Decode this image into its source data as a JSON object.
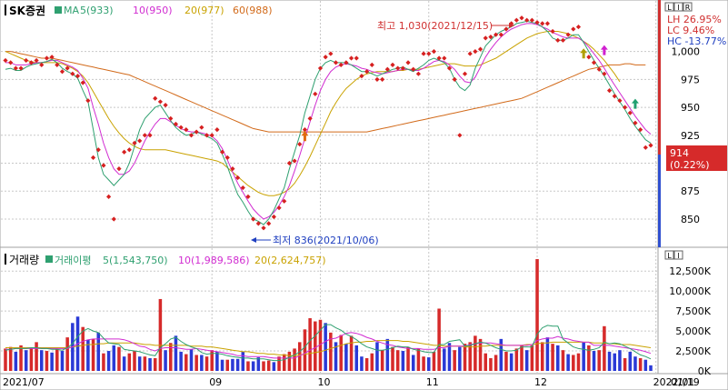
{
  "header": {
    "name": "SK증권",
    "ma_label": "MA",
    "ma5": "5(933)",
    "ma10": "10(950)",
    "ma20": "20(977)",
    "ma60": "60(988)",
    "vol_title": "거래량",
    "vol_ma_label": "거래이평",
    "vol_ma5": "5(1,543,750)",
    "vol_ma10": "10(1,989,586)",
    "vol_ma20": "20(2,624,757)"
  },
  "stats": {
    "lh": "LH  26.95%",
    "lc": "LC   9.46%",
    "hc": "HC -13.77%"
  },
  "buttons": {
    "price": [
      "L",
      "I",
      "R"
    ],
    "volume": [
      "L",
      "I"
    ]
  },
  "annotations": {
    "high": "최고 1,030(2021/12/15)",
    "low": "최저 836(2021/10/06)"
  },
  "current": {
    "price": "914",
    "change": "(0.22%)"
  },
  "chart_data": [
    {
      "type": "scatter",
      "name": "price",
      "ylim": [
        828,
        1042
      ],
      "yticks": [
        850,
        875,
        900,
        925,
        950,
        975,
        1000
      ],
      "ytick_labels": [
        "850",
        "875",
        "900",
        "925",
        "950",
        "975",
        "1,000"
      ],
      "x_labels": [
        {
          "i": 0,
          "label": "2021/07"
        },
        {
          "i": 40,
          "label": "09"
        },
        {
          "i": 61,
          "label": "10"
        },
        {
          "i": 82,
          "label": "11"
        },
        {
          "i": 103,
          "label": "12"
        },
        {
          "i": 126,
          "label": "2022/01"
        }
      ],
      "last_date": "01/19",
      "close": [
        992,
        990,
        985,
        985,
        992,
        990,
        992,
        988,
        994,
        995,
        988,
        982,
        985,
        980,
        978,
        972,
        956,
        905,
        912,
        898,
        870,
        850,
        895,
        910,
        912,
        918,
        920,
        925,
        925,
        958,
        955,
        952,
        940,
        935,
        932,
        930,
        925,
        928,
        932,
        925,
        925,
        930,
        910,
        905,
        895,
        887,
        878,
        870,
        850,
        846,
        842,
        846,
        852,
        860,
        866,
        900,
        902,
        917,
        930,
        940,
        962,
        985,
        995,
        998,
        990,
        988,
        990,
        994,
        994,
        978,
        982,
        988,
        975,
        975,
        984,
        988,
        985,
        985,
        990,
        984,
        980,
        998,
        998,
        1000,
        994,
        994,
        985,
        975,
        925,
        980,
        998,
        1000,
        1002,
        1012,
        1013,
        1015,
        1015,
        1020,
        1025,
        1028,
        1030,
        1028,
        1028,
        1026,
        1025,
        1025,
        1018,
        1010,
        1010,
        1015,
        1020,
        1022,
        1000,
        995,
        990,
        984,
        980,
        965,
        960,
        956,
        950,
        945,
        936,
        930,
        914,
        916
      ],
      "ma5": [
        984,
        985,
        983,
        983,
        986,
        988,
        989,
        990,
        991,
        993,
        990,
        985,
        982,
        980,
        976,
        965,
        955,
        930,
        905,
        890,
        885,
        880,
        885,
        890,
        900,
        915,
        930,
        940,
        945,
        950,
        952,
        945,
        938,
        932,
        928,
        925,
        926,
        928,
        926,
        924,
        922,
        918,
        908,
        897,
        884,
        872,
        865,
        857,
        850,
        848,
        845,
        850,
        858,
        868,
        878,
        895,
        910,
        925,
        945,
        960,
        975,
        985,
        990,
        992,
        990,
        990,
        990,
        988,
        985,
        982,
        982,
        980,
        978,
        980,
        982,
        984,
        985,
        986,
        984,
        982,
        985,
        988,
        992,
        994,
        992,
        990,
        985,
        975,
        968,
        965,
        970,
        985,
        995,
        1005,
        1010,
        1015,
        1018,
        1020,
        1022,
        1025,
        1026,
        1027,
        1026,
        1025,
        1022,
        1018,
        1012,
        1010,
        1010,
        1012,
        1015,
        1015,
        1008,
        1000,
        992,
        985,
        978,
        970,
        962,
        955,
        948,
        940,
        933,
        927,
        921,
        918
      ],
      "ma10": [
        990,
        990,
        988,
        988,
        988,
        989,
        990,
        990,
        991,
        992,
        992,
        990,
        988,
        986,
        983,
        976,
        967,
        950,
        935,
        918,
        905,
        895,
        890,
        890,
        893,
        900,
        910,
        920,
        928,
        935,
        940,
        940,
        937,
        934,
        931,
        929,
        928,
        928,
        927,
        926,
        924,
        920,
        913,
        903,
        892,
        882,
        874,
        866,
        859,
        854,
        850,
        852,
        856,
        862,
        870,
        880,
        893,
        907,
        922,
        937,
        952,
        965,
        975,
        982,
        986,
        988,
        989,
        988,
        987,
        985,
        984,
        982,
        981,
        980,
        981,
        982,
        983,
        984,
        984,
        983,
        983,
        985,
        988,
        991,
        992,
        991,
        988,
        984,
        978,
        973,
        972,
        977,
        986,
        995,
        1002,
        1008,
        1013,
        1017,
        1020,
        1022,
        1024,
        1025,
        1025,
        1024,
        1022,
        1020,
        1017,
        1015,
        1013,
        1012,
        1012,
        1012,
        1009,
        1004,
        998,
        992,
        985,
        977,
        970,
        963,
        956,
        949,
        942,
        936,
        930,
        926
      ],
      "ma20": [
        1000,
        998,
        996,
        994,
        992,
        991,
        990,
        990,
        990,
        990,
        990,
        989,
        987,
        985,
        982,
        978,
        972,
        964,
        956,
        948,
        940,
        933,
        927,
        922,
        918,
        915,
        913,
        912,
        912,
        912,
        912,
        912,
        911,
        910,
        909,
        908,
        907,
        906,
        905,
        904,
        903,
        902,
        900,
        896,
        892,
        888,
        884,
        880,
        877,
        874,
        872,
        871,
        871,
        872,
        874,
        877,
        882,
        889,
        897,
        906,
        916,
        926,
        936,
        946,
        954,
        961,
        967,
        971,
        975,
        978,
        980,
        981,
        982,
        982,
        982,
        982,
        983,
        983,
        984,
        984,
        984,
        985,
        986,
        987,
        988,
        989,
        989,
        989,
        988,
        987,
        987,
        987,
        988,
        990,
        992,
        994,
        997,
        1000,
        1003,
        1006,
        1009,
        1012,
        1014,
        1016,
        1017,
        1018,
        1018,
        1018,
        1017,
        1016,
        1014,
        1012,
        1009,
        1006,
        1002,
        997,
        992,
        986,
        980,
        973
      ],
      "ma60": [
        1000,
        1000,
        999,
        998,
        997,
        996,
        995,
        994,
        994,
        994,
        993,
        992,
        991,
        990,
        989,
        988,
        987,
        986,
        985,
        984,
        983,
        982,
        981,
        980,
        979,
        977,
        975,
        973,
        971,
        969,
        967,
        965,
        963,
        961,
        959,
        957,
        955,
        953,
        951,
        949,
        947,
        945,
        943,
        941,
        939,
        937,
        935,
        933,
        931,
        930,
        929,
        928,
        928,
        928,
        928,
        928,
        928,
        928,
        928,
        928,
        928,
        928,
        928,
        928,
        928,
        928,
        928,
        928,
        928,
        928,
        928,
        929,
        930,
        931,
        932,
        933,
        934,
        935,
        936,
        937,
        938,
        939,
        940,
        941,
        942,
        943,
        944,
        945,
        946,
        947,
        948,
        949,
        950,
        951,
        952,
        953,
        954,
        955,
        956,
        957,
        958,
        960,
        962,
        964,
        966,
        968,
        970,
        972,
        974,
        976,
        978,
        980,
        982,
        984,
        985,
        986,
        987,
        988,
        988,
        988,
        989,
        989,
        988,
        988,
        988
      ]
    },
    {
      "type": "bar",
      "name": "volume",
      "ylim": [
        0,
        14800
      ],
      "yticks": [
        0,
        2500,
        5000,
        7500,
        10000,
        12500
      ],
      "ytick_labels": [
        "0K",
        "2,500K",
        "5,000K",
        "7,500K",
        "10,000K",
        "12,500K"
      ],
      "unit": "K",
      "values": [
        2800,
        3000,
        2400,
        3200,
        2600,
        2900,
        3600,
        2600,
        2500,
        2300,
        2700,
        2500,
        4200,
        6000,
        6800,
        5500,
        3900,
        4000,
        4800,
        2200,
        2500,
        3200,
        3000,
        1800,
        2200,
        2500,
        1800,
        1800,
        1600,
        1600,
        9000,
        2600,
        3500,
        4400,
        2400,
        2100,
        2700,
        2000,
        2000,
        1800,
        2600,
        2400,
        1400,
        1400,
        1500,
        1500,
        2400,
        1200,
        1200,
        1700,
        1200,
        1300,
        1100,
        1800,
        2100,
        2400,
        2800,
        3600,
        5200,
        6600,
        6200,
        6400,
        6000,
        4800,
        3600,
        4500,
        3400,
        4400,
        3200,
        1800,
        1600,
        2200,
        3600,
        2600,
        4000,
        3000,
        2600,
        2500,
        3000,
        2000,
        2800,
        1800,
        1700,
        2400,
        7800,
        2800,
        3500,
        2600,
        3000,
        3400,
        3600,
        4400,
        4000,
        2200,
        1600,
        2000,
        4000,
        2400,
        2200,
        2800,
        3200,
        2600,
        3200,
        14000,
        3600,
        4200,
        3400,
        3200,
        2600,
        2100,
        2000,
        2200,
        3600,
        3200,
        2500,
        2600,
        5600,
        2400,
        2200,
        2600,
        1600,
        2400,
        1800,
        1600,
        1400,
        700
      ],
      "up": [
        1,
        1,
        0,
        1,
        0,
        1,
        1,
        0,
        1,
        0,
        1,
        0,
        1,
        0,
        0,
        1,
        0,
        1,
        0,
        1,
        0,
        0,
        1,
        0,
        1,
        1,
        0,
        1,
        0,
        1,
        1,
        0,
        1,
        0,
        0,
        1,
        0,
        1,
        0,
        1,
        1,
        0,
        0,
        1,
        0,
        0,
        0,
        1,
        0,
        0,
        1,
        1,
        0,
        1,
        1,
        1,
        1,
        1,
        1,
        1,
        1,
        1,
        0,
        1,
        0,
        1,
        0,
        1,
        0,
        0,
        1,
        1,
        0,
        1,
        0,
        1,
        1,
        0,
        1,
        0,
        1,
        1,
        0,
        1,
        1,
        0,
        0,
        1,
        0,
        1,
        1,
        1,
        1,
        1,
        1,
        1,
        0,
        1,
        0,
        1,
        1,
        0,
        1,
        1,
        1,
        0,
        1,
        0,
        1,
        0,
        1,
        1,
        0,
        1,
        0,
        1,
        1,
        0,
        0,
        0,
        1,
        0,
        0,
        1,
        0,
        0
      ],
      "ma5": [
        2600,
        2700,
        2800,
        2800,
        2800,
        2900,
        2900,
        2800,
        2800,
        2700,
        2700,
        2600,
        2900,
        3400,
        4300,
        5000,
        5300,
        5000,
        4800,
        4100,
        3500,
        3400,
        3300,
        2700,
        2600,
        2500,
        2400,
        2200,
        2000,
        1900,
        2900,
        3400,
        4000,
        4200,
        3700,
        3300,
        3000,
        2800,
        2300,
        2100,
        2200,
        2200,
        2100,
        1900,
        1800,
        1700,
        1600,
        1600,
        1500,
        1500,
        1500,
        1400,
        1300,
        1300,
        1400,
        1700,
        2000,
        2400,
        3000,
        3800,
        4400,
        5100,
        5800,
        5800,
        5400,
        5100,
        4600,
        4300,
        3900,
        3400,
        3000,
        2800,
        2600,
        2600,
        2700,
        2900,
        3100,
        3000,
        3000,
        2700,
        2600,
        2400,
        2300,
        2300,
        3300,
        3300,
        3700,
        3800,
        3900,
        3100,
        3200,
        3400,
        3600,
        3500,
        3200,
        2900,
        2700,
        2500,
        2500,
        2600,
        3000,
        3000,
        3000,
        4600,
        5400,
        5700,
        5600,
        5600,
        4000,
        3500,
        3000,
        2800,
        2700,
        2600,
        2700,
        2900,
        3600,
        3400,
        3500,
        3400,
        3100,
        2800,
        2400,
        2000,
        1800,
        1500
      ],
      "ma10": [
        2700,
        2700,
        2800,
        2800,
        2800,
        2800,
        2800,
        2800,
        2800,
        2800,
        2800,
        2800,
        2800,
        3000,
        3400,
        3700,
        3900,
        4000,
        4000,
        4000,
        4000,
        4000,
        4000,
        3900,
        3700,
        3400,
        3100,
        3000,
        2700,
        2500,
        2800,
        2900,
        2900,
        2900,
        2800,
        2700,
        2700,
        2800,
        2700,
        2600,
        2500,
        2400,
        2300,
        2200,
        2100,
        1900,
        1900,
        1800,
        1800,
        1800,
        1800,
        1700,
        1600,
        1600,
        1600,
        1600,
        1600,
        1900,
        2200,
        2600,
        2900,
        3300,
        3700,
        4000,
        4100,
        4400,
        4700,
        4800,
        4700,
        4500,
        4200,
        4000,
        3700,
        3500,
        3300,
        3200,
        3000,
        2900,
        2800,
        2800,
        2800,
        2700,
        2700,
        2700,
        2900,
        2900,
        3100,
        3100,
        3100,
        3100,
        3300,
        3400,
        3500,
        3500,
        3500,
        3400,
        3300,
        3200,
        3200,
        3200,
        3200,
        3200,
        3300,
        3800,
        4000,
        4100,
        4100,
        4300,
        4100,
        4000,
        3800,
        3700,
        3600,
        3600,
        3200,
        3200,
        3200,
        3200,
        3100,
        3000,
        2900,
        2800,
        2700,
        2600,
        2400,
        2200
      ],
      "ma20": [
        2900,
        2900,
        2900,
        2900,
        2900,
        2900,
        2900,
        2900,
        2900,
        2900,
        2900,
        2900,
        2900,
        3000,
        3100,
        3200,
        3300,
        3300,
        3400,
        3400,
        3500,
        3500,
        3500,
        3500,
        3500,
        3500,
        3400,
        3300,
        3300,
        3200,
        3200,
        3200,
        3200,
        3200,
        3200,
        3200,
        3100,
        3100,
        3100,
        3000,
        3000,
        2900,
        2800,
        2700,
        2600,
        2500,
        2400,
        2400,
        2300,
        2200,
        2200,
        2100,
        2100,
        2000,
        2000,
        1900,
        1900,
        2000,
        2100,
        2200,
        2300,
        2400,
        2600,
        2800,
        3000,
        3200,
        3400,
        3500,
        3600,
        3600,
        3700,
        3700,
        3800,
        3800,
        3800,
        3800,
        3800,
        3700,
        3700,
        3600,
        3500,
        3400,
        3300,
        3200,
        3200,
        3100,
        3100,
        3100,
        3100,
        3000,
        3000,
        3000,
        3100,
        3100,
        3200,
        3200,
        3200,
        3200,
        3200,
        3200,
        3200,
        3300,
        3300,
        3400,
        3500,
        3500,
        3600,
        3600,
        3600,
        3600,
        3600,
        3600,
        3600,
        3600,
        3500,
        3500,
        3500,
        3400,
        3400,
        3300,
        3300,
        3300,
        3200,
        3100,
        3000,
        2900
      ]
    }
  ]
}
